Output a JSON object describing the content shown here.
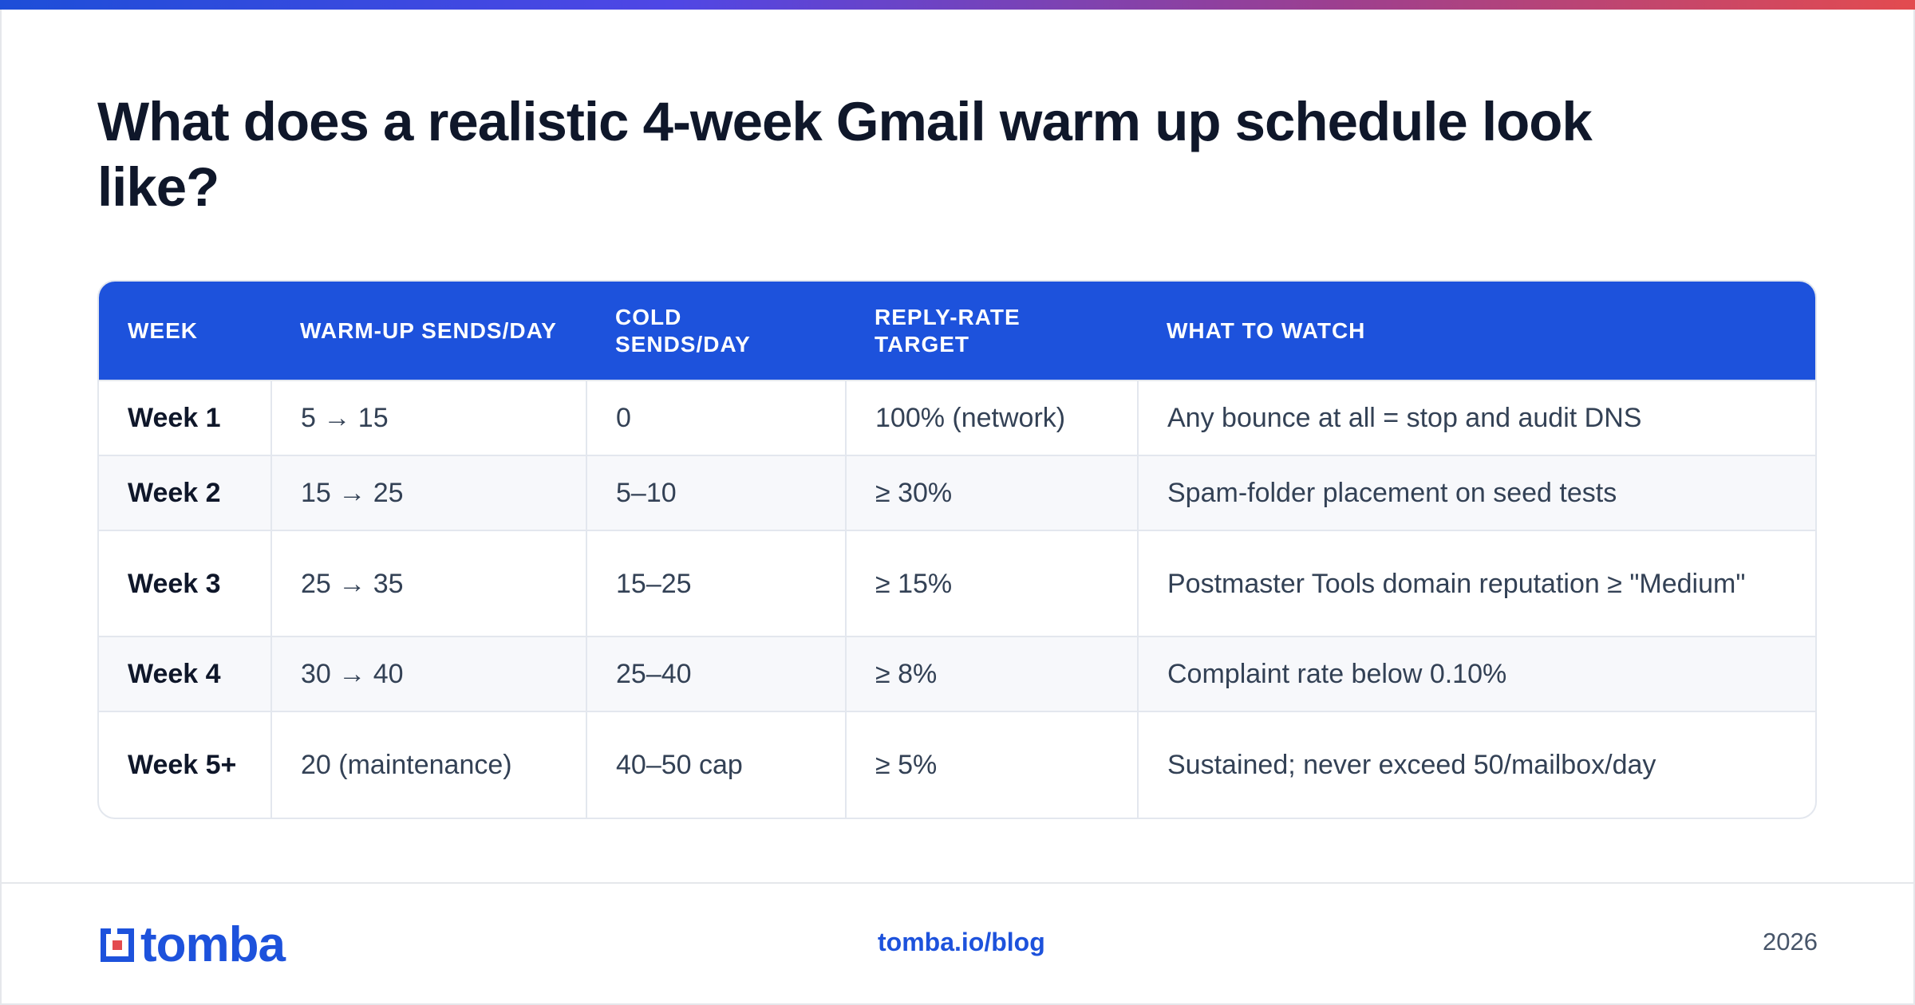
{
  "title": "What does a realistic 4-week Gmail warm up schedule look like?",
  "table": {
    "headers": [
      "WEEK",
      "WARM-UP SENDS/DAY",
      "COLD SENDS/DAY",
      "REPLY-RATE TARGET",
      "WHAT TO WATCH"
    ],
    "rows": [
      [
        "Week 1",
        "5 → 15",
        "0",
        "100% (network)",
        "Any bounce at all = stop and audit DNS"
      ],
      [
        "Week 2",
        "15 → 25",
        "5–10",
        "≥ 30%",
        "Spam-folder placement on seed tests"
      ],
      [
        "Week 3",
        "25 → 35",
        "15–25",
        "≥ 15%",
        "Postmaster Tools domain reputation ≥ \"Medium\""
      ],
      [
        "Week 4",
        "30 → 40",
        "25–40",
        "≥ 8%",
        "Complaint rate below 0.10%"
      ],
      [
        "Week 5+",
        "20 (maintenance)",
        "40–50 cap",
        "≥ 5%",
        "Sustained; never exceed 50/mailbox/day"
      ]
    ]
  },
  "footer": {
    "logo_text": "tomba",
    "link": "tomba.io/blog",
    "year": "2026"
  },
  "colors": {
    "accent": "#1d52dc",
    "gradient": [
      "#1d4ed8",
      "#4f46e5",
      "#9d3f8f",
      "#e34b4f"
    ]
  }
}
